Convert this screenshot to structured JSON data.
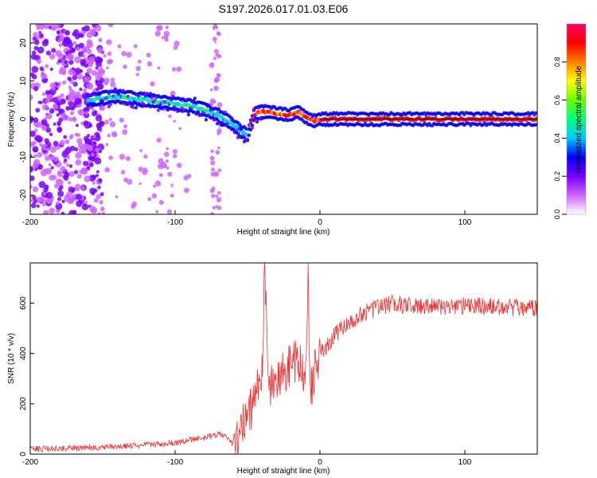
{
  "chart_data": [
    {
      "type": "heatmap",
      "title": "S197.2026.017.01.03.E06",
      "xlabel": "Height of straight line (km)",
      "ylabel": "Frequency (Hz)",
      "xlim": [
        -200,
        150
      ],
      "ylim": [
        -25,
        25
      ],
      "xticks": [
        -200,
        -100,
        0,
        100
      ],
      "xtick_labels": [
        "-200",
        "-100",
        "0",
        "100"
      ],
      "yticks": [
        -20,
        -10,
        0,
        10,
        20
      ],
      "ytick_labels": [
        "-20",
        "-10",
        "0",
        "10",
        "20"
      ],
      "colorbar": {
        "label": "Normalized spectral amplitude",
        "range": [
          0,
          1
        ],
        "ticks": [
          0.0,
          0.2,
          0.4,
          0.6,
          0.8
        ],
        "tick_labels": [
          "0.0",
          "0.2",
          "0.4",
          "0.6",
          "0.8"
        ],
        "colormap": [
          "#ffffff",
          "#cc66ff",
          "#7a00ff",
          "#0000ff",
          "#00c8ff",
          "#00ff80",
          "#66ff00",
          "#ffff00",
          "#ff8000",
          "#ff0000",
          "#ff0066"
        ]
      },
      "ridge": {
        "name": "dominant frequency",
        "x": [
          -160,
          -150,
          -140,
          -130,
          -120,
          -110,
          -100,
          -90,
          -80,
          -70,
          -60,
          -55,
          -50,
          -45,
          -40,
          -30,
          -20,
          -15,
          -10,
          -5,
          0,
          10,
          30,
          60,
          100,
          150
        ],
        "y": [
          5,
          5.5,
          6,
          5.5,
          5,
          4.5,
          4,
          3.5,
          2.5,
          1,
          -1.5,
          -3,
          -4,
          1.5,
          2,
          1.5,
          1,
          2,
          0.5,
          -0.5,
          0,
          0,
          0,
          0,
          0,
          0
        ]
      },
      "reference_line": {
        "y": 0,
        "x_range": [
          0,
          150
        ],
        "color": "#000000"
      }
    },
    {
      "type": "line",
      "xlabel": "Height of straight line (km)",
      "ylabel": "SNR (10 * v/v)",
      "xlim": [
        -200,
        150
      ],
      "ylim": [
        0,
        760
      ],
      "xticks": [
        -200,
        -100,
        0,
        100
      ],
      "xtick_labels": [
        "-200",
        "-100",
        "0",
        "100"
      ],
      "yticks": [
        0,
        200,
        400,
        600
      ],
      "ytick_labels": [
        "0",
        "200",
        "400",
        "600"
      ],
      "series": [
        {
          "name": "SNR",
          "color": "#ee3333",
          "x": [
            -200,
            -180,
            -160,
            -140,
            -120,
            -100,
            -90,
            -80,
            -70,
            -65,
            -60,
            -55,
            -50,
            -45,
            -40,
            -38,
            -36,
            -34,
            -30,
            -25,
            -20,
            -15,
            -10,
            -8,
            -7,
            -5,
            -3,
            0,
            5,
            10,
            15,
            20,
            25,
            30,
            35,
            40,
            45,
            50,
            60,
            80,
            100,
            120,
            150
          ],
          "y": [
            20,
            22,
            25,
            30,
            35,
            45,
            55,
            65,
            80,
            70,
            40,
            100,
            150,
            220,
            320,
            760,
            280,
            260,
            300,
            330,
            350,
            380,
            300,
            740,
            200,
            300,
            350,
            400,
            430,
            470,
            500,
            520,
            540,
            560,
            570,
            580,
            590,
            600,
            590,
            585,
            590,
            585,
            580
          ]
        }
      ]
    }
  ]
}
